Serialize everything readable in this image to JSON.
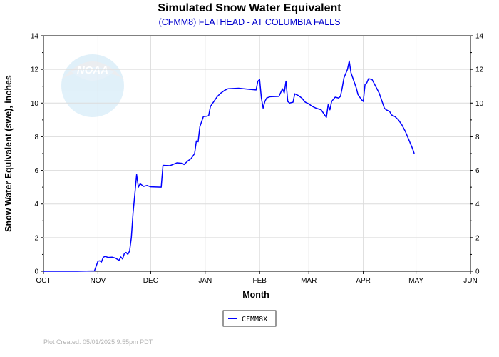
{
  "chart_data": {
    "type": "line",
    "title": "Simulated Snow Water Equivalent",
    "subtitle": "(CFMM8) FLATHEAD - AT COLUMBIA FALLS",
    "xlabel": "Month",
    "ylabel": "Snow Water Equivalent (swe),  inches",
    "x_ticks": [
      "OCT",
      "NOV",
      "DEC",
      "JAN",
      "FEB",
      "MAR",
      "APR",
      "MAY",
      "JUN"
    ],
    "x_tick_dates": [
      "2024-10-01",
      "2024-11-01",
      "2024-12-01",
      "2025-01-01",
      "2025-02-01",
      "2025-03-01",
      "2025-04-01",
      "2025-05-01",
      "2025-06-01"
    ],
    "xlim": [
      "2024-10-01",
      "2025-06-01"
    ],
    "y_ticks": [
      0,
      2,
      4,
      6,
      8,
      10,
      12,
      14
    ],
    "ylim": [
      0,
      14
    ],
    "grid": true,
    "legend_position": "bottom-center",
    "series_color": "#0000ff",
    "series": [
      {
        "name": "CFMM8X",
        "points": [
          [
            "2024-10-01",
            0
          ],
          [
            "2024-10-20",
            0
          ],
          [
            "2024-10-30",
            0.02
          ],
          [
            "2024-11-01",
            0.6
          ],
          [
            "2024-11-02",
            0.62
          ],
          [
            "2024-11-03",
            0.55
          ],
          [
            "2024-11-04",
            0.83
          ],
          [
            "2024-11-05",
            0.88
          ],
          [
            "2024-11-07",
            0.82
          ],
          [
            "2024-11-09",
            0.84
          ],
          [
            "2024-11-11",
            0.78
          ],
          [
            "2024-11-13",
            0.65
          ],
          [
            "2024-11-14",
            0.85
          ],
          [
            "2024-11-15",
            0.73
          ],
          [
            "2024-11-16",
            1.05
          ],
          [
            "2024-11-17",
            1.12
          ],
          [
            "2024-11-18",
            1.0
          ],
          [
            "2024-11-19",
            1.2
          ],
          [
            "2024-11-20",
            2.0
          ],
          [
            "2024-11-21",
            3.5
          ],
          [
            "2024-11-22",
            4.6
          ],
          [
            "2024-11-23",
            5.75
          ],
          [
            "2024-11-24",
            5.0
          ],
          [
            "2024-11-25",
            5.2
          ],
          [
            "2024-11-27",
            5.05
          ],
          [
            "2024-11-29",
            5.1
          ],
          [
            "2024-12-01",
            5.02
          ],
          [
            "2024-12-07",
            5.0
          ],
          [
            "2024-12-08",
            6.3
          ],
          [
            "2024-12-12",
            6.28
          ],
          [
            "2024-12-16",
            6.45
          ],
          [
            "2024-12-19",
            6.42
          ],
          [
            "2024-12-20",
            6.35
          ],
          [
            "2024-12-22",
            6.55
          ],
          [
            "2024-12-24",
            6.7
          ],
          [
            "2024-12-26",
            7.0
          ],
          [
            "2024-12-27",
            7.75
          ],
          [
            "2024-12-28",
            7.7
          ],
          [
            "2024-12-29",
            8.6
          ],
          [
            "2024-12-31",
            9.2
          ],
          [
            "2025-01-02",
            9.22
          ],
          [
            "2025-01-03",
            9.25
          ],
          [
            "2025-01-04",
            9.8
          ],
          [
            "2025-01-06",
            10.1
          ],
          [
            "2025-01-08",
            10.4
          ],
          [
            "2025-01-10",
            10.6
          ],
          [
            "2025-01-12",
            10.75
          ],
          [
            "2025-01-14",
            10.85
          ],
          [
            "2025-01-20",
            10.88
          ],
          [
            "2025-01-26",
            10.82
          ],
          [
            "2025-01-30",
            10.78
          ],
          [
            "2025-01-31",
            11.3
          ],
          [
            "2025-02-01",
            11.4
          ],
          [
            "2025-02-02",
            10.3
          ],
          [
            "2025-02-03",
            9.7
          ],
          [
            "2025-02-04",
            10.1
          ],
          [
            "2025-02-05",
            10.3
          ],
          [
            "2025-02-07",
            10.38
          ],
          [
            "2025-02-12",
            10.4
          ],
          [
            "2025-02-14",
            10.85
          ],
          [
            "2025-02-15",
            10.6
          ],
          [
            "2025-02-16",
            11.3
          ],
          [
            "2025-02-17",
            10.1
          ],
          [
            "2025-02-18",
            10.0
          ],
          [
            "2025-02-20",
            10.05
          ],
          [
            "2025-02-21",
            10.55
          ],
          [
            "2025-02-23",
            10.45
          ],
          [
            "2025-02-25",
            10.3
          ],
          [
            "2025-02-27",
            10.05
          ],
          [
            "2025-03-01",
            9.95
          ],
          [
            "2025-03-03",
            9.8
          ],
          [
            "2025-03-05",
            9.7
          ],
          [
            "2025-03-08",
            9.6
          ],
          [
            "2025-03-10",
            9.3
          ],
          [
            "2025-03-11",
            9.15
          ],
          [
            "2025-03-12",
            9.9
          ],
          [
            "2025-03-13",
            9.6
          ],
          [
            "2025-03-14",
            10.1
          ],
          [
            "2025-03-16",
            10.35
          ],
          [
            "2025-03-18",
            10.3
          ],
          [
            "2025-03-19",
            10.4
          ],
          [
            "2025-03-20",
            10.9
          ],
          [
            "2025-03-21",
            11.5
          ],
          [
            "2025-03-23",
            12.0
          ],
          [
            "2025-03-24",
            12.5
          ],
          [
            "2025-03-25",
            11.8
          ],
          [
            "2025-03-26",
            11.5
          ],
          [
            "2025-03-28",
            10.9
          ],
          [
            "2025-03-29",
            10.5
          ],
          [
            "2025-03-31",
            10.2
          ],
          [
            "2025-04-01",
            10.1
          ],
          [
            "2025-04-02",
            11.1
          ],
          [
            "2025-04-03",
            11.2
          ],
          [
            "2025-04-04",
            11.45
          ],
          [
            "2025-04-06",
            11.4
          ],
          [
            "2025-04-08",
            11.0
          ],
          [
            "2025-04-10",
            10.6
          ],
          [
            "2025-04-12",
            10.0
          ],
          [
            "2025-04-13",
            9.7
          ],
          [
            "2025-04-14",
            9.6
          ],
          [
            "2025-04-16",
            9.5
          ],
          [
            "2025-04-17",
            9.3
          ],
          [
            "2025-04-19",
            9.2
          ],
          [
            "2025-04-21",
            9.0
          ],
          [
            "2025-04-23",
            8.7
          ],
          [
            "2025-04-25",
            8.3
          ],
          [
            "2025-04-27",
            7.8
          ],
          [
            "2025-04-29",
            7.3
          ],
          [
            "2025-04-30",
            7.0
          ]
        ]
      }
    ],
    "footer": "Plot Created: 05/01/2025 9:55pm PDT",
    "watermark_text": "NOAA"
  }
}
